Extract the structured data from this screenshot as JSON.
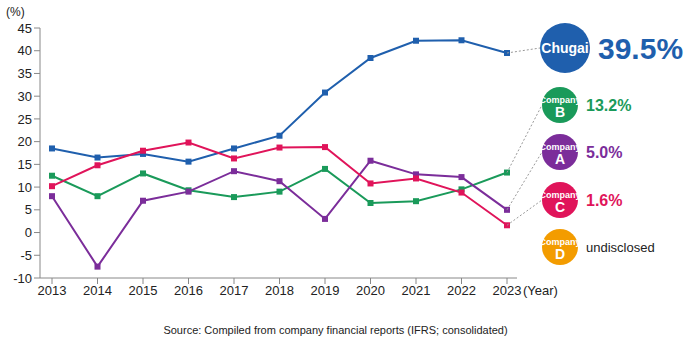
{
  "chart_data": {
    "type": "line",
    "y_label": "(%)",
    "x_label": "(Year)",
    "source": "Source: Compiled from company financial reports (IFRS; consolidated)",
    "categories": [
      "2013",
      "2014",
      "2015",
      "2016",
      "2017",
      "2018",
      "2019",
      "2020",
      "2021",
      "2022",
      "2023"
    ],
    "ylim": [
      -10,
      45
    ],
    "yticks": [
      -10,
      -5,
      0,
      5,
      10,
      15,
      20,
      25,
      30,
      35,
      40,
      45
    ],
    "grid": false,
    "marker": "square",
    "series": [
      {
        "name": "Chugai",
        "color": "#1f5fad",
        "values": [
          18.5,
          16.5,
          17.3,
          15.6,
          18.5,
          21.3,
          30.8,
          38.4,
          42.2,
          42.3,
          39.5
        ],
        "value_labels": [
          null,
          null,
          null,
          null,
          null,
          null,
          null,
          null,
          null,
          null,
          "39.5%"
        ]
      },
      {
        "name": "Company B",
        "color": "#1a9a5a",
        "values": [
          12.5,
          8.0,
          13.0,
          9.3,
          7.8,
          9.0,
          14.0,
          6.5,
          6.9,
          9.5,
          13.2
        ],
        "value_labels": [
          null,
          null,
          null,
          null,
          null,
          null,
          null,
          null,
          null,
          null,
          "13.2%"
        ]
      },
      {
        "name": "Company A",
        "color": "#7b2d9a",
        "values": [
          8.0,
          -7.5,
          7.0,
          9.0,
          13.5,
          11.3,
          3.0,
          15.8,
          12.8,
          12.2,
          5.0
        ],
        "value_labels": [
          null,
          null,
          null,
          null,
          null,
          null,
          null,
          null,
          null,
          null,
          "5.0%"
        ]
      },
      {
        "name": "Company C",
        "color": "#e0145a",
        "values": [
          10.2,
          14.8,
          18.0,
          19.8,
          16.3,
          18.7,
          18.8,
          10.8,
          11.9,
          8.8,
          1.6
        ],
        "value_labels": [
          null,
          null,
          null,
          null,
          null,
          null,
          null,
          null,
          null,
          null,
          "1.6%"
        ]
      },
      {
        "name": "Company D",
        "color": "#f39c00",
        "values": [
          null,
          null,
          null,
          null,
          null,
          null,
          null,
          null,
          null,
          null,
          null
        ],
        "label": "undisclosed"
      }
    ]
  }
}
